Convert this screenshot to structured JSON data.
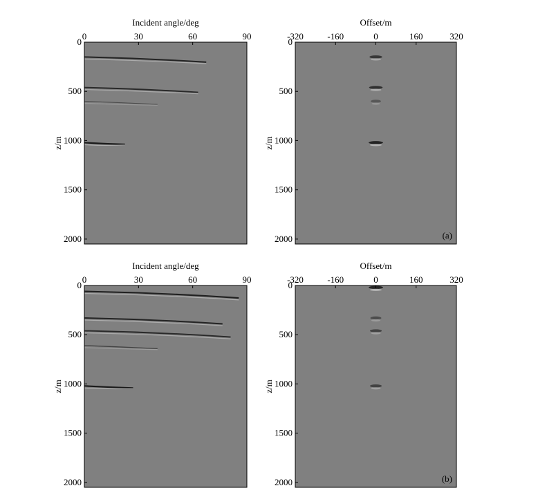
{
  "figure": {
    "panels": [
      {
        "id": "a-left",
        "xlabel": "Incident angle/deg",
        "ylabel": "z/m",
        "xticks": [
          "0",
          "30",
          "60",
          "90"
        ],
        "yticks": [
          "0",
          "500",
          "1000",
          "1500",
          "2000"
        ],
        "panel_label": "",
        "kind": "angle",
        "events": [
          {
            "depth": 150,
            "extent": 0.75,
            "strength": 0.9
          },
          {
            "depth": 460,
            "extent": 0.7,
            "strength": 0.85
          },
          {
            "depth": 600,
            "extent": 0.45,
            "strength": 0.5
          },
          {
            "depth": 1020,
            "extent": 0.25,
            "strength": 1.0
          }
        ]
      },
      {
        "id": "a-right",
        "xlabel": "Offset/m",
        "ylabel": "z/m",
        "xticks": [
          "-320",
          "-160",
          "0",
          "160",
          "320"
        ],
        "yticks": [
          "0",
          "500",
          "1000",
          "1500",
          "2000"
        ],
        "panel_label": "(a)",
        "kind": "offset",
        "events": [
          {
            "depth": 150,
            "strength": 0.7
          },
          {
            "depth": 460,
            "strength": 0.8
          },
          {
            "depth": 600,
            "strength": 0.4
          },
          {
            "depth": 1020,
            "strength": 0.9
          }
        ]
      },
      {
        "id": "b-left",
        "xlabel": "Incident angle/deg",
        "ylabel": "z/m",
        "xticks": [
          "0",
          "30",
          "60",
          "90"
        ],
        "yticks": [
          "0",
          "500",
          "1000",
          "1500",
          "2000"
        ],
        "panel_label": "",
        "kind": "angle",
        "events": [
          {
            "depth": 60,
            "extent": 0.95,
            "strength": 0.95
          },
          {
            "depth": 330,
            "extent": 0.85,
            "strength": 0.9
          },
          {
            "depth": 460,
            "extent": 0.9,
            "strength": 0.85
          },
          {
            "depth": 610,
            "extent": 0.45,
            "strength": 0.6
          },
          {
            "depth": 1020,
            "extent": 0.3,
            "strength": 1.0
          }
        ]
      },
      {
        "id": "b-right",
        "xlabel": "Offset/m",
        "ylabel": "z/m",
        "xticks": [
          "-320",
          "-160",
          "0",
          "160",
          "320"
        ],
        "yticks": [
          "0",
          "500",
          "1000",
          "1500",
          "2000"
        ],
        "panel_label": "(b)",
        "kind": "offset",
        "events": [
          {
            "depth": 20,
            "strength": 0.9
          },
          {
            "depth": 330,
            "strength": 0.5
          },
          {
            "depth": 460,
            "strength": 0.6
          },
          {
            "depth": 1020,
            "strength": 0.6
          }
        ]
      }
    ]
  },
  "colors": {
    "background": "#808080",
    "dark": "#1a1a1a",
    "light": "#d0d0d0",
    "axis": "#000000"
  }
}
